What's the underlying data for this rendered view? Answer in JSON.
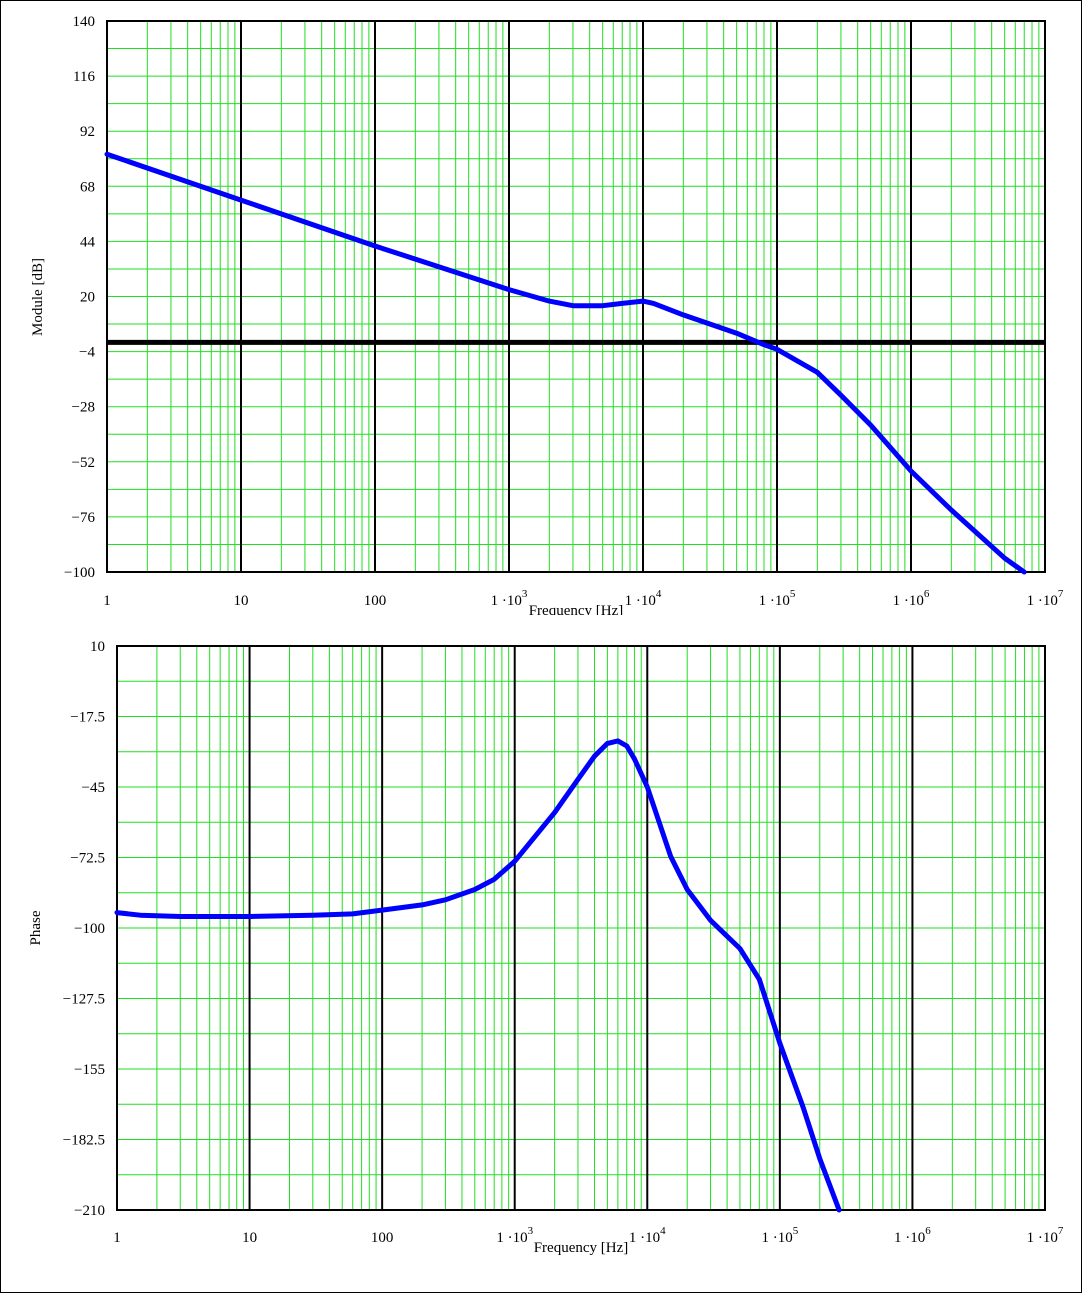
{
  "chart_data": [
    {
      "type": "line",
      "xscale": "log",
      "xlim": [
        1,
        10000000
      ],
      "ylim": [
        -100,
        140
      ],
      "xlabel": "Frequency [Hz]",
      "ylabel": "Module [dB]",
      "yticks": [
        140,
        116,
        92,
        68,
        44,
        20,
        -4,
        -28,
        -52,
        -76,
        -100
      ],
      "ytick_labels": [
        "140",
        "116",
        "92",
        "68",
        "44",
        "20",
        "−4",
        "−28",
        "−52",
        "−76",
        "−100"
      ],
      "xticks": [
        {
          "value": 1,
          "base": "1",
          "exp": ""
        },
        {
          "value": 10,
          "base": "10",
          "exp": ""
        },
        {
          "value": 100,
          "base": "100",
          "exp": ""
        },
        {
          "value": 1000,
          "base": "1 ·10",
          "exp": "3"
        },
        {
          "value": 10000,
          "base": "1 ·10",
          "exp": "4"
        },
        {
          "value": 100000,
          "base": "1 ·10",
          "exp": "5"
        },
        {
          "value": 1000000,
          "base": "1 ·10",
          "exp": "6"
        },
        {
          "value": 10000000,
          "base": "1 ·10",
          "exp": "7"
        }
      ],
      "grid": true,
      "reference_line_y": 0,
      "series": [
        {
          "color": "#0000ff",
          "x": [
            1,
            10,
            100,
            1000,
            2000,
            3000,
            5000,
            7000,
            10000,
            12000,
            20000,
            50000,
            80000,
            100000,
            200000,
            300000,
            500000,
            1000000,
            2000000,
            5000000,
            7000000
          ],
          "y": [
            82,
            62,
            42,
            23,
            18,
            16,
            16,
            17,
            18,
            17,
            12,
            4,
            -1,
            -3,
            -13,
            -23,
            -36,
            -56,
            -73,
            -94,
            -100
          ]
        }
      ]
    },
    {
      "type": "line",
      "xscale": "log",
      "xlim": [
        1,
        10000000
      ],
      "ylim": [
        -210,
        10
      ],
      "xlabel": "Frequency [Hz]",
      "ylabel": "Phase",
      "yticks": [
        10,
        -17.5,
        -45,
        -72.5,
        -100,
        -127.5,
        -155,
        -182.5,
        -210
      ],
      "ytick_labels": [
        "10",
        "−17.5",
        "−45",
        "−72.5",
        "−100",
        "−127.5",
        "−155",
        "−182.5",
        "−210"
      ],
      "xticks": [
        {
          "value": 1,
          "base": "1",
          "exp": ""
        },
        {
          "value": 10,
          "base": "10",
          "exp": ""
        },
        {
          "value": 100,
          "base": "100",
          "exp": ""
        },
        {
          "value": 1000,
          "base": "1 ·10",
          "exp": "3"
        },
        {
          "value": 10000,
          "base": "1 ·10",
          "exp": "4"
        },
        {
          "value": 100000,
          "base": "1 ·10",
          "exp": "5"
        },
        {
          "value": 1000000,
          "base": "1 ·10",
          "exp": "6"
        },
        {
          "value": 10000000,
          "base": "1 ·10",
          "exp": "7"
        }
      ],
      "grid": true,
      "series": [
        {
          "color": "#0000ff",
          "x": [
            1,
            1.5,
            3,
            10,
            30,
            60,
            100,
            200,
            300,
            500,
            700,
            1000,
            2000,
            3000,
            4000,
            5000,
            6000,
            7000,
            8000,
            10000,
            15000,
            20000,
            30000,
            50000,
            70000,
            100000,
            150000,
            200000,
            280000
          ],
          "y": [
            -94,
            -95,
            -95.5,
            -95.5,
            -95,
            -94.5,
            -93,
            -91,
            -89,
            -85,
            -81,
            -74,
            -55,
            -42,
            -33,
            -28,
            -27,
            -29,
            -34,
            -45,
            -72,
            -85,
            -97,
            -108,
            -120,
            -145,
            -170,
            -190,
            -210
          ]
        }
      ]
    }
  ]
}
